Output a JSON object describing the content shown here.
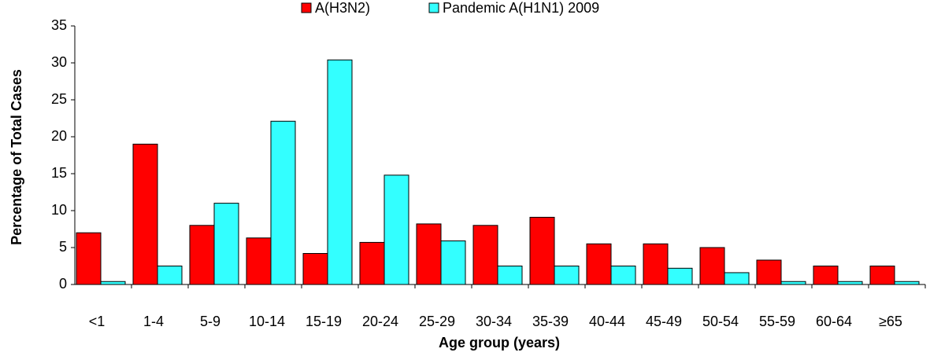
{
  "chart_data": {
    "type": "bar",
    "x_label": "Age group (years)",
    "y_label": "Percentage of Total Cases",
    "categories": [
      "<1",
      "1-4",
      "5-9",
      "10-14",
      "15-19",
      "20-24",
      "25-29",
      "30-34",
      "35-39",
      "40-44",
      "45-49",
      "50-54",
      "55-59",
      "60-64",
      "≥65"
    ],
    "series": [
      {
        "name": "A(H3N2)",
        "color": "#ff0000",
        "values": [
          7,
          19,
          8,
          6.3,
          4.2,
          5.7,
          8.2,
          8,
          9.1,
          5.5,
          5.5,
          5,
          3.3,
          2.5,
          2.5
        ]
      },
      {
        "name": "Pandemic A(H1N1) 2009",
        "color": "#33ffff",
        "values": [
          0.4,
          2.5,
          11,
          22.1,
          30.4,
          14.8,
          5.9,
          2.5,
          2.5,
          2.5,
          2.2,
          1.6,
          0.4,
          0.4,
          0.4
        ]
      }
    ],
    "ylim": [
      0,
      35
    ],
    "yticks": [
      0,
      5,
      10,
      15,
      20,
      25,
      30,
      35
    ],
    "grid": false,
    "legend": "top"
  }
}
